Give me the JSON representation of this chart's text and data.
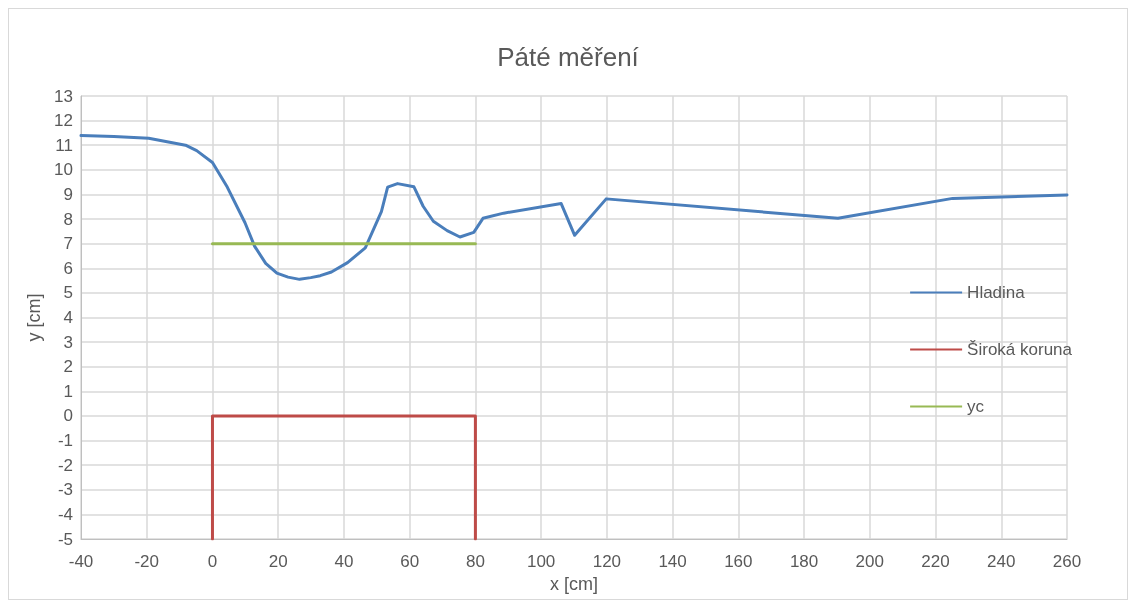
{
  "chart_data": {
    "type": "line",
    "title": "Páté měření",
    "xlabel": "x [cm]",
    "ylabel": "y [cm]",
    "xlim": [
      -40,
      260
    ],
    "xticks": [
      -40,
      -20,
      0,
      20,
      40,
      60,
      80,
      100,
      120,
      140,
      160,
      180,
      200,
      220,
      240,
      260
    ],
    "ylim": [
      -5,
      13
    ],
    "yticks": [
      -5,
      -4,
      -3,
      -2,
      -1,
      0,
      1,
      2,
      3,
      4,
      5,
      6,
      7,
      8,
      9,
      10,
      11,
      12,
      13
    ],
    "grid": true,
    "legend": "right",
    "marker": "none",
    "line_style": "solid",
    "series": [
      {
        "name": "Hladina",
        "color": "#4a7ebb",
        "x": [
          -40,
          -30,
          -19.4,
          -8.2,
          -4.8,
          0,
          4.5,
          9.9,
          12.8,
          16.2,
          19.6,
          23,
          26.5,
          29.9,
          32.8,
          36.2,
          41.1,
          46.5,
          51.4,
          53.3,
          56.3,
          61.3,
          64.1,
          67.2,
          71.4,
          75.3,
          79.5,
          82.3,
          88.6,
          106.1,
          110.2,
          119.8,
          190.3,
          225.2,
          260
        ],
        "values": [
          11.39,
          11.35,
          11.28,
          11.0,
          10.78,
          10.3,
          9.3,
          7.85,
          6.9,
          6.2,
          5.8,
          5.64,
          5.55,
          5.62,
          5.7,
          5.85,
          6.23,
          6.83,
          8.3,
          9.3,
          9.44,
          9.31,
          8.52,
          7.91,
          7.53,
          7.27,
          7.46,
          8.03,
          8.24,
          8.63,
          7.34,
          8.82,
          8.03,
          8.84,
          8.98
        ]
      },
      {
        "name": "Široká koruna",
        "color": "#be4b48",
        "x": [
          0,
          0,
          80,
          80
        ],
        "values": [
          -5,
          0,
          0,
          -5
        ]
      },
      {
        "name": "yc",
        "color": "#98b954",
        "x": [
          0,
          80
        ],
        "values": [
          7,
          7
        ]
      }
    ]
  }
}
